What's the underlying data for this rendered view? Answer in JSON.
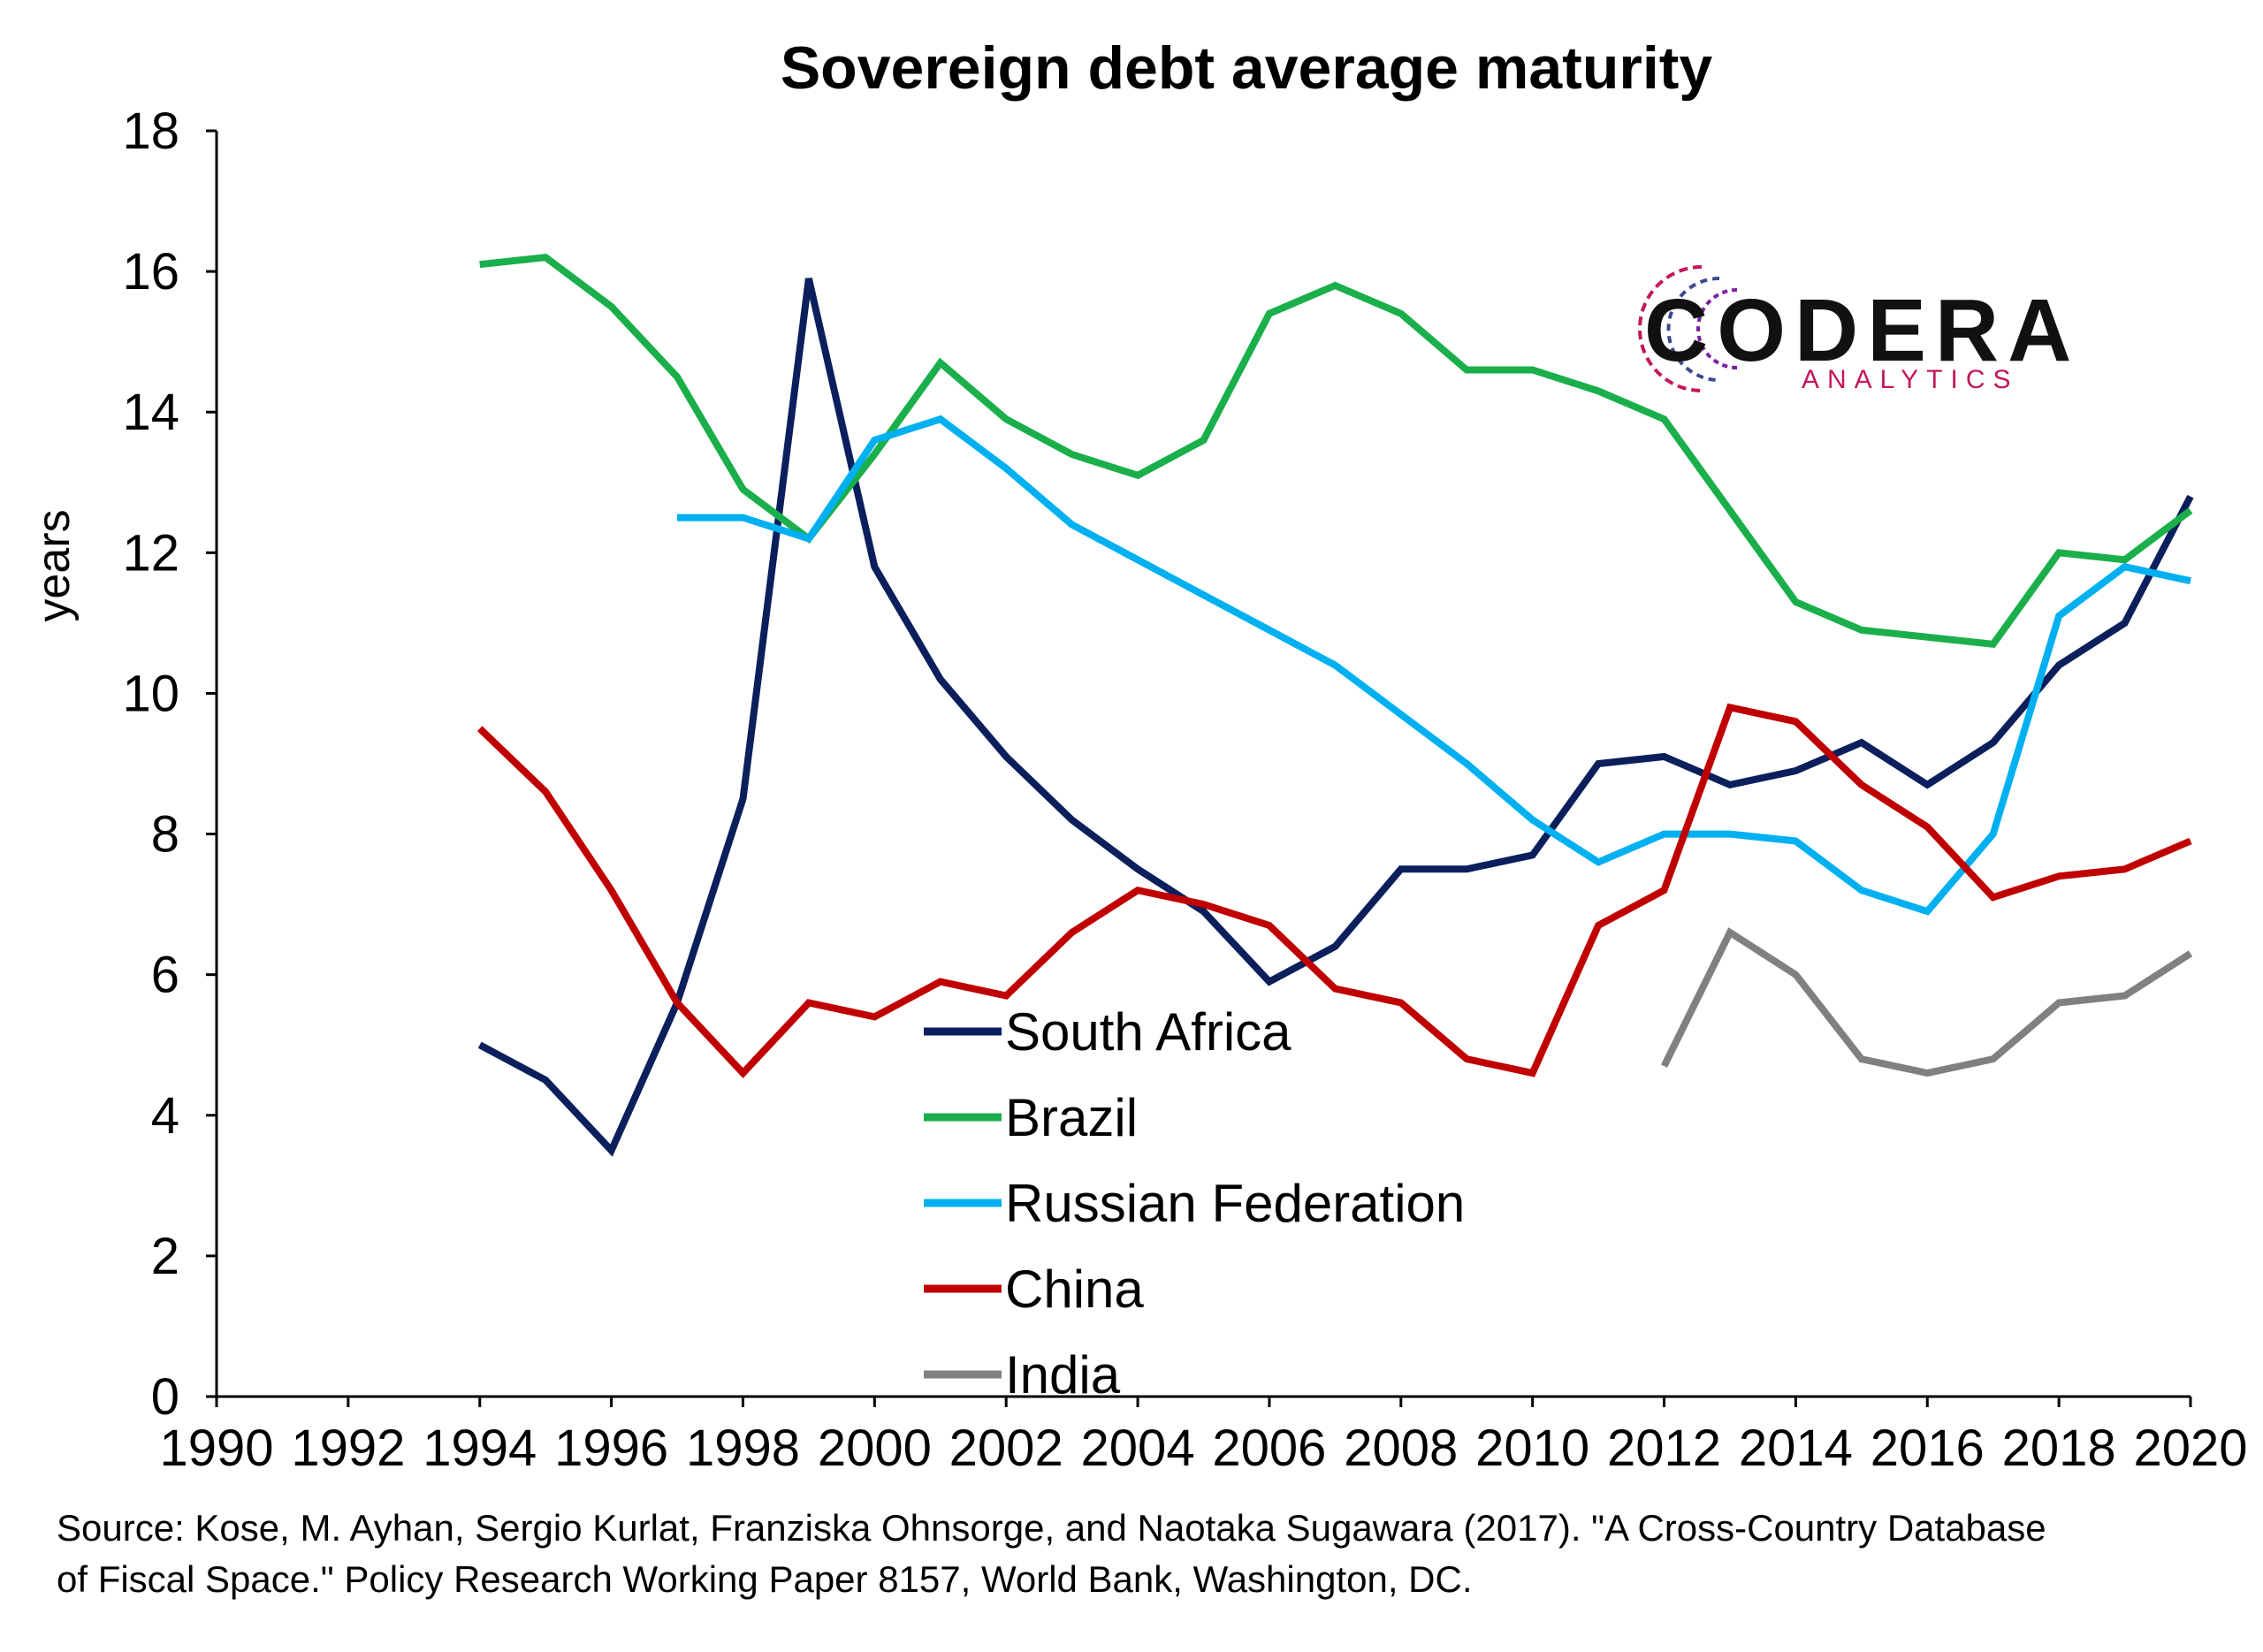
{
  "chart_data": {
    "type": "line",
    "title": "Sovereign debt average maturity",
    "ylabel": "years",
    "xlabel": "",
    "xlim": [
      1990,
      2020
    ],
    "ylim": [
      0,
      18
    ],
    "x_ticks": [
      "1990",
      "1992",
      "1994",
      "1996",
      "1998",
      "2000",
      "2002",
      "2004",
      "2006",
      "2008",
      "2010",
      "2012",
      "2014",
      "2016",
      "2018",
      "2020"
    ],
    "y_ticks": [
      "0",
      "2",
      "4",
      "6",
      "8",
      "10",
      "12",
      "14",
      "16",
      "18"
    ],
    "grid": false,
    "legend_position": "center-bottom",
    "series": [
      {
        "name": "South Africa",
        "color": "#0b1f5c",
        "x": [
          1994,
          1995,
          1996,
          1997,
          1998,
          1999,
          2000,
          2001,
          2002,
          2003,
          2004,
          2005,
          2006,
          2007,
          2008,
          2009,
          2010,
          2011,
          2012,
          2013,
          2014,
          2015,
          2016,
          2017,
          2018,
          2019,
          2020
        ],
        "y": [
          5.0,
          4.5,
          3.5,
          5.6,
          8.5,
          15.9,
          11.8,
          10.2,
          9.1,
          8.2,
          7.5,
          6.9,
          5.9,
          6.4,
          7.5,
          7.5,
          7.7,
          9.0,
          9.1,
          8.7,
          8.9,
          9.3,
          8.7,
          9.3,
          10.4,
          11.0,
          12.8
        ]
      },
      {
        "name": "Brazil",
        "color": "#1aaf4b",
        "x": [
          1994,
          1995,
          1996,
          1997,
          1998,
          1999,
          2000,
          2001,
          2002,
          2003,
          2004,
          2005,
          2006,
          2007,
          2008,
          2009,
          2010,
          2011,
          2012,
          2013,
          2014,
          2015,
          2016,
          2017,
          2018,
          2019,
          2020
        ],
        "y": [
          16.1,
          16.2,
          15.5,
          14.5,
          12.9,
          12.2,
          13.4,
          14.7,
          13.9,
          13.4,
          13.1,
          13.6,
          15.4,
          15.8,
          15.4,
          14.6,
          14.6,
          14.3,
          13.9,
          12.6,
          11.3,
          10.9,
          10.8,
          10.7,
          12.0,
          11.9,
          12.6
        ]
      },
      {
        "name": "Russian Federation",
        "color": "#00b0f0",
        "x": [
          1997,
          1998,
          1999,
          2000,
          2001,
          2002,
          2003,
          2004,
          2005,
          2006,
          2007,
          2008,
          2009,
          2010,
          2011,
          2012,
          2013,
          2014,
          2015,
          2016,
          2017,
          2018,
          2019,
          2020
        ],
        "y": [
          12.5,
          12.5,
          12.2,
          13.6,
          13.9,
          13.2,
          12.4,
          11.9,
          11.4,
          10.9,
          10.4,
          9.7,
          9.0,
          8.2,
          7.6,
          8.0,
          8.0,
          7.9,
          7.2,
          6.9,
          8.0,
          11.1,
          11.8,
          11.6
        ]
      },
      {
        "name": "China",
        "color": "#c00000",
        "x": [
          1994,
          1995,
          1996,
          1997,
          1998,
          1999,
          2000,
          2001,
          2002,
          2003,
          2004,
          2005,
          2006,
          2007,
          2008,
          2009,
          2010,
          2011,
          2012,
          2013,
          2014,
          2015,
          2016,
          2017,
          2018,
          2019,
          2020
        ],
        "y": [
          9.5,
          8.6,
          7.2,
          5.6,
          4.6,
          5.6,
          5.4,
          5.9,
          5.7,
          6.6,
          7.2,
          7.0,
          6.7,
          5.8,
          5.6,
          4.8,
          4.6,
          6.7,
          7.2,
          9.8,
          9.6,
          8.7,
          8.1,
          7.1,
          7.4,
          7.5,
          7.9
        ]
      },
      {
        "name": "India",
        "color": "#808080",
        "x": [
          2012,
          2013,
          2014,
          2015,
          2016,
          2017,
          2018,
          2019,
          2020
        ],
        "y": [
          4.7,
          6.6,
          6.0,
          4.8,
          4.6,
          4.8,
          5.6,
          5.7,
          6.3
        ]
      }
    ]
  },
  "logo": {
    "word": "CODERA",
    "sub": "ANALYTICS"
  },
  "source_lines": [
    "Source: Kose, M. Ayhan, Sergio Kurlat, Franziska Ohnsorge, and Naotaka Sugawara (2017). \"A Cross-Country Database",
    "of Fiscal Space.\" Policy Research Working Paper 8157, World Bank, Washington, DC."
  ]
}
